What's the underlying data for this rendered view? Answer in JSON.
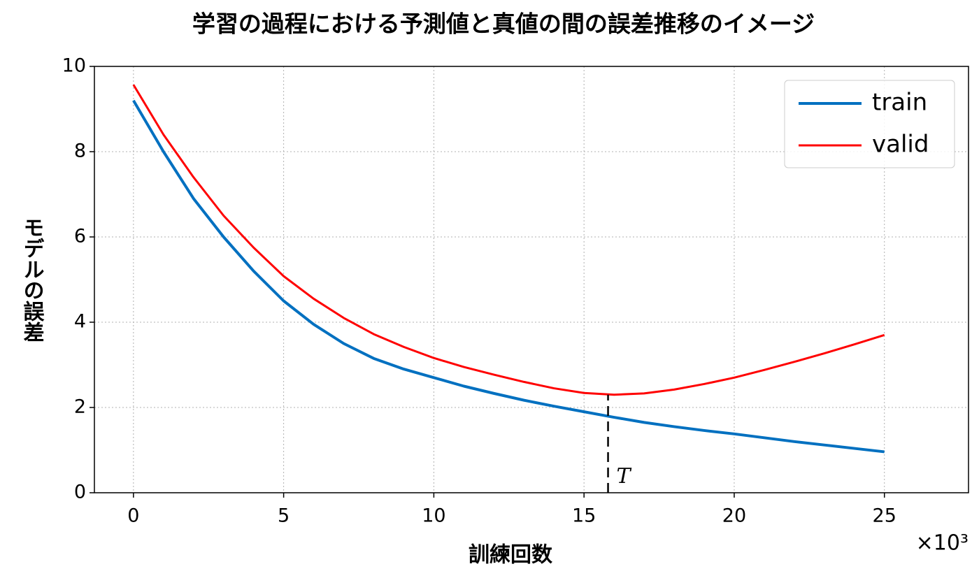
{
  "chart_data": {
    "type": "line",
    "title": "学習の過程における予測値と真値の間の誤差推移のイメージ",
    "x_label": "訓練回数",
    "y_label": "モデルの誤差",
    "x_offset_label": "×10³",
    "x": [
      0,
      1,
      2,
      3,
      4,
      5,
      6,
      7,
      8,
      9,
      10,
      11,
      12,
      13,
      14,
      15,
      16,
      17,
      18,
      19,
      20,
      21,
      22,
      23,
      24,
      25
    ],
    "series": [
      {
        "name": "train",
        "color": "#0070c0",
        "width": 4,
        "values": [
          9.2,
          8.0,
          6.9,
          6.0,
          5.2,
          4.5,
          3.95,
          3.5,
          3.15,
          2.9,
          2.7,
          2.5,
          2.33,
          2.17,
          2.03,
          1.9,
          1.77,
          1.65,
          1.55,
          1.46,
          1.38,
          1.29,
          1.2,
          1.12,
          1.04,
          0.96
        ]
      },
      {
        "name": "valid",
        "color": "#ff0000",
        "width": 3,
        "values": [
          9.57,
          8.4,
          7.4,
          6.5,
          5.75,
          5.08,
          4.55,
          4.1,
          3.72,
          3.42,
          3.16,
          2.95,
          2.77,
          2.6,
          2.45,
          2.34,
          2.3,
          2.33,
          2.42,
          2.55,
          2.7,
          2.88,
          3.07,
          3.27,
          3.48,
          3.7
        ]
      }
    ],
    "xlim": [
      -1.3,
      27.8
    ],
    "ylim": [
      0,
      10
    ],
    "xticks": [
      0,
      5,
      10,
      15,
      20,
      25
    ],
    "yticks": [
      0,
      2,
      4,
      6,
      8,
      10
    ],
    "grid": true,
    "legend": "upper-right",
    "vline": {
      "x": 15.8,
      "ymax": 2.3,
      "label": "T"
    }
  }
}
